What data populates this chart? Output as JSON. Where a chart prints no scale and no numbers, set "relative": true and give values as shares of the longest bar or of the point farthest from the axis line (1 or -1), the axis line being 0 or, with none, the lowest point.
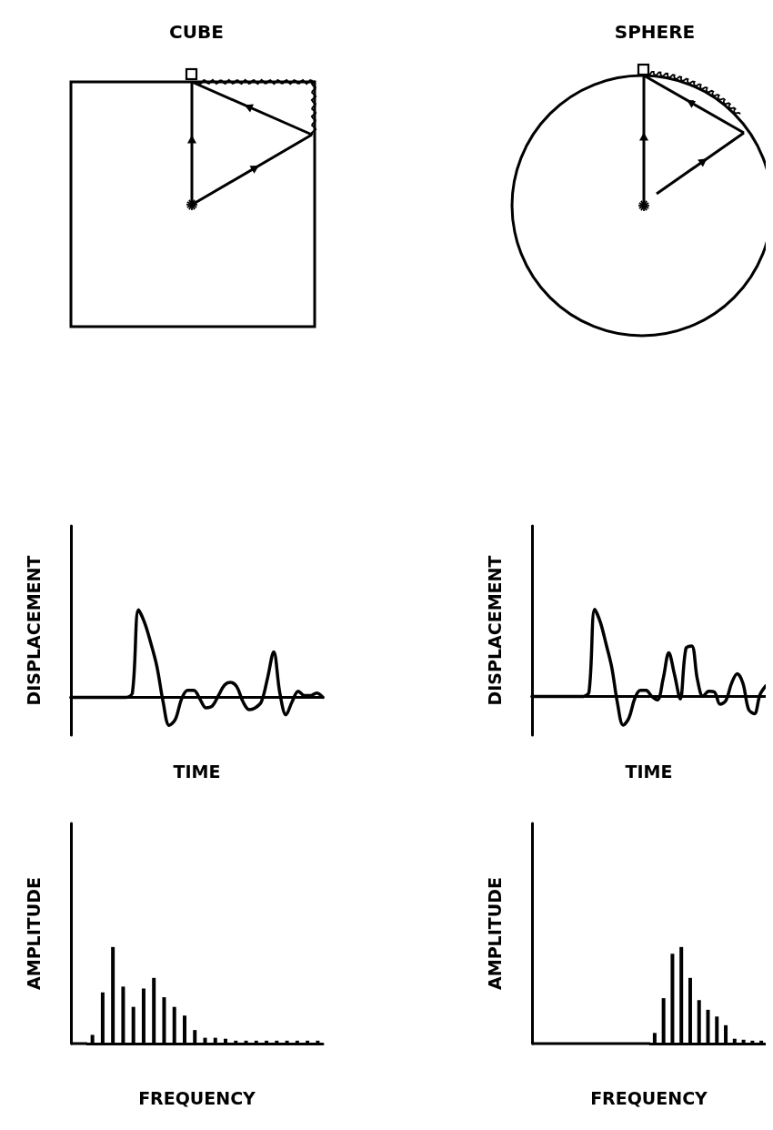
{
  "chart_data": [
    {
      "type": "line",
      "title": "CUBE",
      "xlabel": "TIME",
      "ylabel": "DISPLACEMENT",
      "relative": true,
      "tick_labels": false,
      "categories": [
        null,
        null,
        null,
        null,
        null,
        null,
        null,
        null,
        null,
        null,
        null,
        null,
        null,
        null,
        null,
        null,
        null,
        null,
        null,
        null,
        null,
        null,
        null,
        null,
        null,
        null,
        null,
        null,
        null,
        null,
        null,
        null,
        null,
        null,
        null,
        null,
        null,
        null,
        null,
        null,
        null,
        null
      ],
      "series": [
        {
          "color": "#000000",
          "values": [
            0,
            0,
            0,
            0,
            0,
            0,
            0,
            0,
            0,
            0,
            0.05,
            1.0,
            0.85,
            0.62,
            0.35,
            -0.05,
            -0.32,
            -0.25,
            -0.02,
            0.08,
            0.08,
            -0.02,
            -0.12,
            -0.1,
            0.02,
            0.14,
            0.17,
            0.12,
            -0.05,
            -0.14,
            -0.12,
            -0.05,
            0.22,
            0.52,
            0.05,
            -0.2,
            -0.05,
            0.07,
            0.02,
            0.02,
            0.05,
            0
          ]
        }
      ]
    },
    {
      "type": "line",
      "title": "SPHERE",
      "xlabel": "TIME",
      "ylabel": "DISPLACEMENT",
      "relative": true,
      "tick_labels": false,
      "categories": [
        null,
        null,
        null,
        null,
        null,
        null,
        null,
        null,
        null,
        null,
        null,
        null,
        null,
        null,
        null,
        null,
        null,
        null,
        null,
        null,
        null,
        null,
        null,
        null,
        null,
        null,
        null,
        null,
        null,
        null,
        null,
        null,
        null,
        null,
        null,
        null,
        null,
        null,
        null,
        null,
        null,
        null
      ],
      "series": [
        {
          "color": "#000000",
          "values": [
            0,
            0,
            0,
            0,
            0,
            0,
            0,
            0,
            0,
            0,
            0.05,
            1.0,
            0.85,
            0.6,
            0.33,
            -0.08,
            -0.33,
            -0.25,
            -0.03,
            0.07,
            0.07,
            0,
            -0.04,
            0.2,
            0.5,
            0.25,
            -0.03,
            0.55,
            0.58,
            0.2,
            0,
            0.06,
            0.05,
            -0.09,
            -0.05,
            0.15,
            0.26,
            0.15,
            -0.15,
            -0.2,
            0.02,
            0.12
          ]
        }
      ]
    },
    {
      "type": "bar",
      "xlabel": "FREQUENCY",
      "ylabel": "AMPLITUDE",
      "relative": true,
      "tick_labels": false,
      "categories": [
        null,
        null,
        null,
        null,
        null,
        null,
        null,
        null,
        null,
        null,
        null,
        null,
        null,
        null,
        null,
        null,
        null,
        null,
        null,
        null,
        null,
        null,
        null
      ],
      "series": [
        {
          "color": "#000000",
          "values": [
            0.09,
            0.53,
            1.0,
            0.59,
            0.38,
            0.57,
            0.68,
            0.48,
            0.38,
            0.29,
            0.14,
            0.06,
            0.06,
            0.05,
            0.03,
            0.03,
            0.03,
            0.03,
            0.03,
            0.03,
            0.03,
            0.03,
            0.03
          ]
        }
      ]
    },
    {
      "type": "bar",
      "xlabel": "FREQUENCY",
      "ylabel": "AMPLITUDE",
      "relative": true,
      "tick_labels": false,
      "categories": [
        null,
        null,
        null,
        null,
        null,
        null,
        null,
        null,
        null,
        null,
        null,
        null,
        null
      ],
      "series": [
        {
          "color": "#000000",
          "values": [
            0.11,
            0.47,
            0.93,
            1.0,
            0.68,
            0.45,
            0.35,
            0.28,
            0.19,
            0.05,
            0.04,
            0.03,
            0.03
          ]
        }
      ]
    }
  ]
}
